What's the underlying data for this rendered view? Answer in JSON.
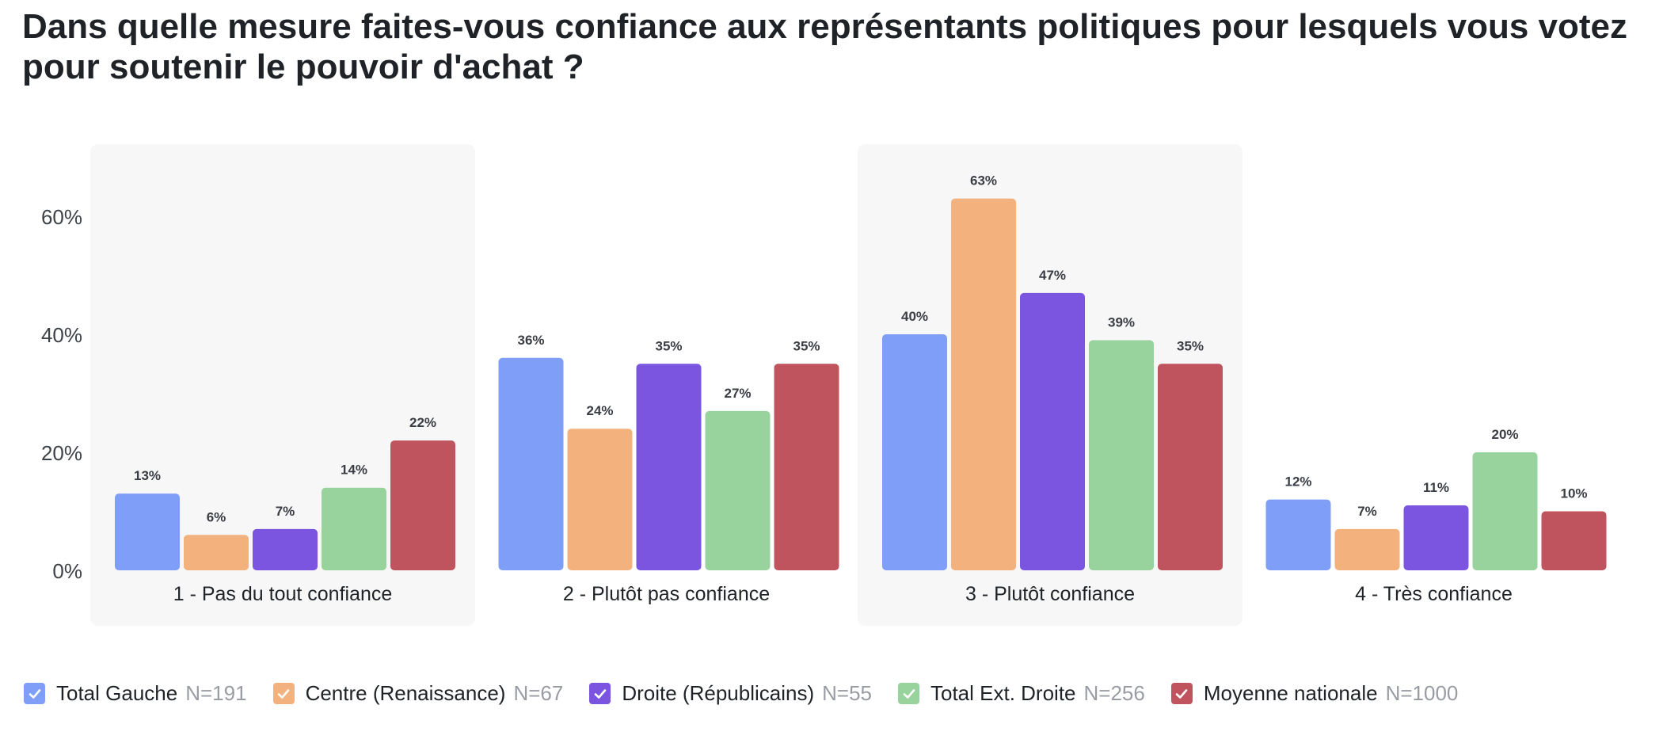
{
  "title": "Dans quelle mesure faites-vous confiance aux représentants politiques pour lesquels vous votez pour soutenir le pouvoir d'achat ?",
  "chart_data": {
    "type": "bar",
    "categories": [
      "1 - Pas du tout confiance",
      "2 - Plutôt pas confiance",
      "3 - Plutôt confiance",
      "4 - Très confiance"
    ],
    "series": [
      {
        "name": "Total Gauche",
        "n": "N=191",
        "color": "#7f9ef7",
        "values": [
          13,
          36,
          40,
          12
        ],
        "labels": [
          "13%",
          "36%",
          "40%",
          "12%"
        ]
      },
      {
        "name": "Centre (Renaissance)",
        "n": "N=67",
        "color": "#f3b27d",
        "values": [
          6,
          24,
          63,
          7
        ],
        "labels": [
          "6%",
          "24%",
          "63%",
          "7%"
        ]
      },
      {
        "name": "Droite (Républicains)",
        "n": "N=55",
        "color": "#7b55df",
        "values": [
          7,
          35,
          47,
          11
        ],
        "labels": [
          "7%",
          "35%",
          "47%",
          "11%"
        ]
      },
      {
        "name": "Total Ext. Droite",
        "n": "N=256",
        "color": "#98d29c",
        "values": [
          14,
          27,
          39,
          20
        ],
        "labels": [
          "14%",
          "27%",
          "39%",
          "20%"
        ]
      },
      {
        "name": "Moyenne nationale",
        "n": "N=1000",
        "color": "#c0545e",
        "values": [
          22,
          35,
          35,
          10
        ],
        "labels": [
          "22%",
          "35%",
          "35%",
          "10%"
        ]
      }
    ],
    "y_ticks": [
      0,
      20,
      40,
      60
    ],
    "y_tick_labels": [
      "0%",
      "20%",
      "40%",
      "60%"
    ],
    "ylim": [
      0,
      70
    ],
    "grid": false,
    "category_backgrounds": "alternating",
    "legend_position": "bottom"
  }
}
